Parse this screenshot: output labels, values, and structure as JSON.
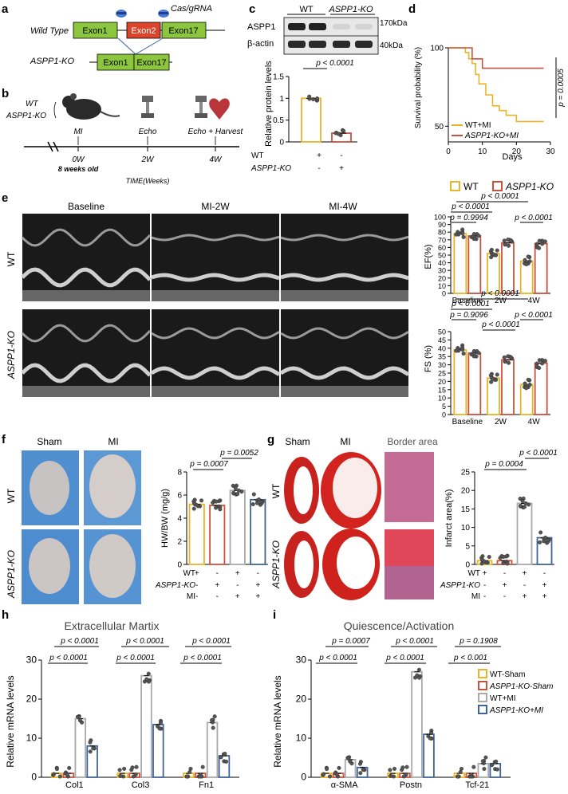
{
  "panels": {
    "a": {
      "label": "a",
      "wild_type": "Wild Type",
      "ko": "ASPP1-KO",
      "cas": "Cas/gRNA",
      "exon1": "Exon1",
      "exon2": "Exon2",
      "exon17": "Exon17",
      "colors": {
        "exon": "#8cc63f",
        "exon2": "#d9442b",
        "scissor": "#4a7bd0"
      }
    },
    "b": {
      "label": "b",
      "wt": "WT",
      "ko": "ASPP1-KO",
      "mi": "MI",
      "echo": "Echo",
      "echo_harvest": "Echo + Harvest",
      "w0": "0W",
      "w2": "2W",
      "w4": "4W",
      "age": "8 weeks old",
      "time_label": "TIME(Weeks)"
    },
    "c": {
      "label": "c",
      "blot_labels": [
        "ASPP1",
        "β-actin"
      ],
      "lanes": [
        "WT",
        "ASPP1-KO"
      ],
      "kda": [
        "170kDa",
        "40kDa"
      ],
      "pvalue": "p < 0.0001",
      "ylabel": "Relative protein levels",
      "row_labels": [
        "WT",
        "ASPP1-KO"
      ],
      "row_signs": [
        [
          "+",
          "-"
        ],
        [
          "-",
          "+"
        ]
      ]
    },
    "d": {
      "label": "d",
      "ylabel": "Survival probability (%)",
      "xlabel": "Days",
      "pvalue": "p = 0.0005",
      "legend": [
        "WT+MI",
        "ASPP1-KO+MI"
      ]
    },
    "e": {
      "label": "e",
      "col_titles": [
        "Baseline",
        "MI-2W",
        "MI-4W"
      ],
      "row_titles": [
        "WT",
        "ASPP1-KO"
      ],
      "legend": [
        "WT",
        "ASPP1-KO"
      ],
      "ef_pvalues": [
        "p < 0.0001",
        "p < 0.0001",
        "p = 0.9994",
        "p < 0.0001"
      ],
      "fs_pvalues": [
        "p < 0.0001",
        "p < 0.0001",
        "p = 0.9096",
        "p < 0.0001",
        "p < 0.0001"
      ]
    },
    "f": {
      "label": "f",
      "col_titles": [
        "Sham",
        "MI"
      ],
      "row_titles": [
        "WT",
        "ASPP1-KO"
      ],
      "pvalues": [
        "p = 0.0052",
        "p = 0.0007"
      ],
      "row_labels": [
        "WT",
        "ASPP1-KO",
        "MI"
      ],
      "row_signs": [
        [
          "+",
          "-",
          "+",
          "-"
        ],
        [
          "-",
          "+",
          "-",
          "+"
        ],
        [
          "-",
          "-",
          "+",
          "+"
        ]
      ]
    },
    "g": {
      "label": "g",
      "col_titles": [
        "Sham",
        "MI",
        "Border area"
      ],
      "row_titles": [
        "WT",
        "ASPP1-KO"
      ],
      "pvalues": [
        "p < 0.0001",
        "p = 0.0004"
      ],
      "row_labels": [
        "WT",
        "ASPP1-KO",
        "MI"
      ],
      "row_signs": [
        [
          "+",
          "-",
          "+",
          "-"
        ],
        [
          "-",
          "+",
          "-",
          "+"
        ],
        [
          "-",
          "-",
          "+",
          "+"
        ]
      ]
    },
    "h": {
      "label": "h",
      "title": "Extracellular Martix",
      "pvalues": [
        "p < 0.0001",
        "p < 0.0001",
        "p < 0.0001",
        "p < 0.0001",
        "p < 0.0001",
        "p < 0.0001"
      ]
    },
    "i": {
      "label": "i",
      "title": "Quiescence/Activation",
      "pvalues": [
        "p = 0.0007",
        "p < 0.0001",
        "p = 0.1908",
        "p < 0.0001",
        "p < 0.0001",
        "p < 0.001"
      ],
      "legend": [
        "WT-Sham",
        "ASPP1-KO-Sham",
        "WT+MI",
        "ASPP1-KO+MI"
      ]
    }
  },
  "colors": {
    "wt": "#e8b428",
    "ko": "#c9523e",
    "wtmi": "#a9a9a9",
    "komi": "#3f6494"
  },
  "chart_data": [
    {
      "id": "c",
      "type": "bar",
      "categories": [
        "WT",
        "ASPP1-KO"
      ],
      "values": [
        1.0,
        0.2
      ],
      "ylabel": "Relative protein levels",
      "ylim": [
        0,
        1.5
      ],
      "yticks": [
        0.0,
        0.5,
        1.0,
        1.5
      ]
    },
    {
      "id": "d",
      "type": "line",
      "xlabel": "Days",
      "ylabel": "Survival probability (%)",
      "xlim": [
        0,
        30
      ],
      "ylim": [
        40,
        100
      ],
      "xticks": [
        0,
        10,
        20,
        30
      ],
      "yticks": [
        50,
        100
      ],
      "series": [
        {
          "name": "WT+MI",
          "x": [
            0,
            4,
            5,
            6,
            7,
            8,
            9,
            11,
            13,
            15,
            17,
            20,
            28
          ],
          "y": [
            100,
            100,
            97,
            93,
            90,
            83,
            77,
            70,
            63,
            60,
            57,
            53,
            53
          ]
        },
        {
          "name": "ASPP1-KO+MI",
          "x": [
            0,
            5,
            7,
            10,
            28
          ],
          "y": [
            100,
            100,
            93,
            87,
            87
          ]
        }
      ]
    },
    {
      "id": "e-ef",
      "type": "bar",
      "categories": [
        "Baseline",
        "2W",
        "4W"
      ],
      "ylabel": "EF(%)",
      "ylim": [
        0,
        100
      ],
      "yticks": [
        0,
        10,
        20,
        30,
        40,
        50,
        60,
        70,
        80,
        90,
        100
      ],
      "series": [
        {
          "name": "WT",
          "values": [
            78,
            52,
            42
          ]
        },
        {
          "name": "ASPP1-KO",
          "values": [
            75,
            66,
            65
          ]
        }
      ]
    },
    {
      "id": "e-fs",
      "type": "bar",
      "categories": [
        "Baseline",
        "2W",
        "4W"
      ],
      "ylabel": "FS (%)",
      "ylim": [
        0,
        50
      ],
      "yticks": [
        0,
        5,
        10,
        15,
        20,
        25,
        30,
        35,
        40,
        45,
        50
      ],
      "series": [
        {
          "name": "WT",
          "values": [
            39,
            22,
            18
          ]
        },
        {
          "name": "ASPP1-KO",
          "values": [
            37,
            33,
            31
          ]
        }
      ]
    },
    {
      "id": "f",
      "type": "bar",
      "ylabel": "HW/BW (mg/g)",
      "ylim": [
        0,
        8
      ],
      "yticks": [
        0,
        2,
        4,
        6,
        8
      ],
      "series": [
        {
          "name": "WT-Sham",
          "values": [
            5.2
          ]
        },
        {
          "name": "ASPP1-KO-Sham",
          "values": [
            5.1
          ]
        },
        {
          "name": "WT+MI",
          "values": [
            6.4
          ]
        },
        {
          "name": "ASPP1-KO+MI",
          "values": [
            5.6
          ]
        }
      ]
    },
    {
      "id": "g",
      "type": "bar",
      "ylabel": "Infarct area(%)",
      "ylim": [
        0,
        25
      ],
      "yticks": [
        0,
        5,
        10,
        15,
        20,
        25
      ],
      "series": [
        {
          "name": "WT-Sham",
          "values": [
            1.0
          ]
        },
        {
          "name": "ASPP1-KO-Sham",
          "values": [
            1.0
          ]
        },
        {
          "name": "WT+MI",
          "values": [
            16.5
          ]
        },
        {
          "name": "ASPP1-KO+MI",
          "values": [
            7.2
          ]
        }
      ]
    },
    {
      "id": "h",
      "type": "bar",
      "title": "Extracellular Martix",
      "categories": [
        "Col1",
        "Col3",
        "Fn1"
      ],
      "ylabel": "Relative mRNA levels",
      "ylim": [
        0,
        30
      ],
      "yticks": [
        0,
        10,
        20,
        30
      ],
      "series": [
        {
          "name": "WT-Sham",
          "values": [
            1,
            1,
            1
          ]
        },
        {
          "name": "ASPP1-KO-Sham",
          "values": [
            1,
            1,
            1
          ]
        },
        {
          "name": "WT+MI",
          "values": [
            15,
            26,
            14
          ]
        },
        {
          "name": "ASPP1-KO+MI",
          "values": [
            8,
            13.5,
            5.5
          ]
        }
      ]
    },
    {
      "id": "i",
      "type": "bar",
      "title": "Quiescence/Activation",
      "categories": [
        "α-SMA",
        "Postn",
        "Tcf-21"
      ],
      "ylabel": "Relative mRNA levels",
      "ylim": [
        0,
        30
      ],
      "yticks": [
        0,
        10,
        20,
        30
      ],
      "series": [
        {
          "name": "WT-Sham",
          "values": [
            1,
            1,
            1
          ]
        },
        {
          "name": "ASPP1-KO-Sham",
          "values": [
            1,
            1,
            1
          ]
        },
        {
          "name": "WT+MI",
          "values": [
            4.5,
            27,
            3.5
          ]
        },
        {
          "name": "ASPP1-KO+MI",
          "values": [
            2.5,
            11,
            3.5
          ]
        }
      ]
    }
  ]
}
